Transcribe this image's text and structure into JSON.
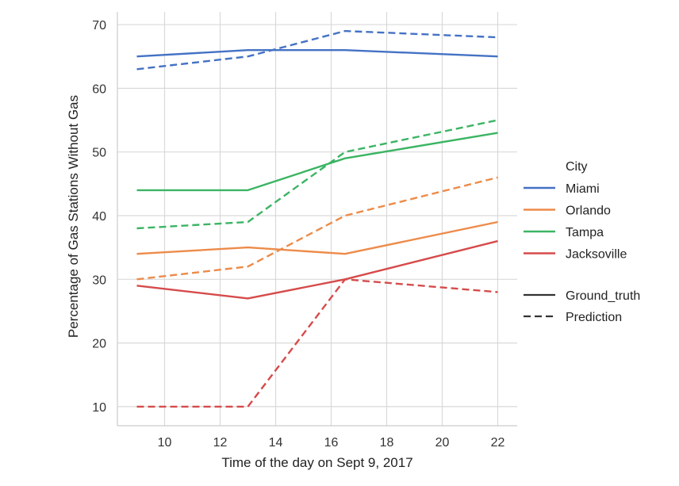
{
  "chart_data": {
    "type": "line",
    "xlabel": "Time of the day on Sept 9, 2017",
    "ylabel": "Percentage of Gas Stations Without Gas",
    "xlim": [
      8.3,
      22.7
    ],
    "ylim": [
      7,
      72
    ],
    "x_ticks": [
      10,
      12,
      14,
      16,
      18,
      20,
      22
    ],
    "y_ticks": [
      10,
      20,
      30,
      40,
      50,
      60,
      70
    ],
    "grid": true,
    "x": [
      9,
      13,
      16.5,
      22
    ],
    "series": [
      {
        "name": "Miami",
        "kind": "Ground_truth",
        "color": "#4472c4",
        "values": [
          65,
          66,
          66,
          65
        ]
      },
      {
        "name": "Miami",
        "kind": "Prediction",
        "color": "#4472c4",
        "values": [
          63,
          65,
          69,
          68
        ]
      },
      {
        "name": "Orlando",
        "kind": "Ground_truth",
        "color": "#ed8b4a",
        "values": [
          34,
          35,
          34,
          39
        ]
      },
      {
        "name": "Orlando",
        "kind": "Prediction",
        "color": "#ed8b4a",
        "values": [
          30,
          32,
          40,
          46
        ]
      },
      {
        "name": "Tampa",
        "kind": "Ground_truth",
        "color": "#3cb464",
        "values": [
          44,
          44,
          49,
          53
        ]
      },
      {
        "name": "Tampa",
        "kind": "Prediction",
        "color": "#3cb464",
        "values": [
          38,
          39,
          50,
          55
        ]
      },
      {
        "name": "Jacksoville",
        "kind": "Ground_truth",
        "color": "#d64b4b",
        "values": [
          29,
          27,
          30,
          36
        ]
      },
      {
        "name": "Jacksoville",
        "kind": "Prediction",
        "color": "#d64b4b",
        "values": [
          10,
          10,
          30,
          28
        ]
      }
    ],
    "legend": {
      "placement": "right",
      "title": "City",
      "cities": [
        {
          "label": "Miami",
          "color": "#4472c4"
        },
        {
          "label": "Orlando",
          "color": "#ed8b4a"
        },
        {
          "label": "Tampa",
          "color": "#3cb464"
        },
        {
          "label": "Jacksoville",
          "color": "#d64b4b"
        }
      ],
      "styles": [
        {
          "label": "Ground_truth",
          "dashed": false
        },
        {
          "label": "Prediction",
          "dashed": true
        }
      ]
    }
  }
}
